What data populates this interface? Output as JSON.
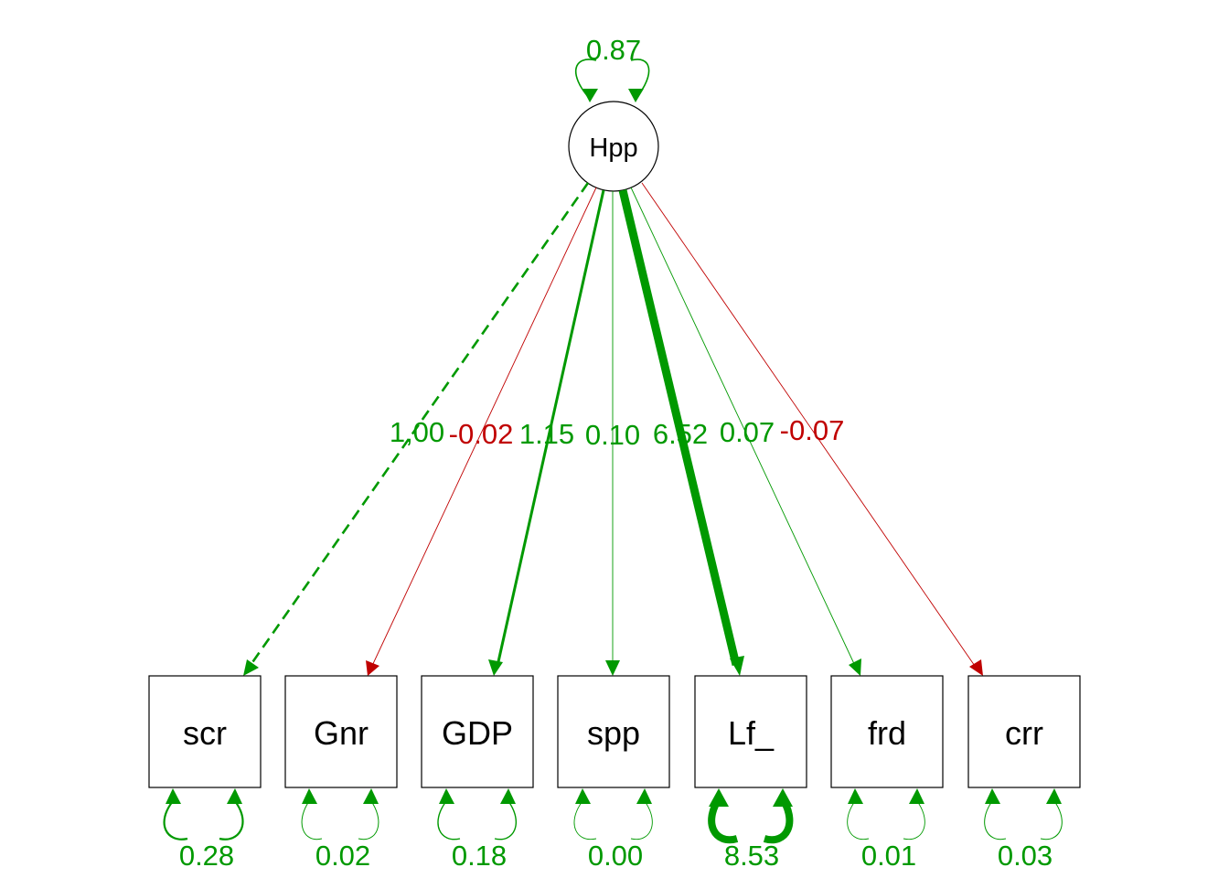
{
  "latent": {
    "label": "Hpp",
    "variance": "0.87"
  },
  "indicators": [
    {
      "label": "scr",
      "loading": "1,00",
      "residual": "0.28"
    },
    {
      "label": "Gnr",
      "loading": "-0.02",
      "residual": "0.02"
    },
    {
      "label": "GDP",
      "loading": "1.15",
      "residual": "0.18"
    },
    {
      "label": "spp",
      "loading": "0.10",
      "residual": "0.00"
    },
    {
      "label": "Lf_",
      "loading": "6.52",
      "residual": "8.53"
    },
    {
      "label": "frd",
      "loading": "0.07",
      "residual": "0.01"
    },
    {
      "label": "crr",
      "loading": "-0.07",
      "residual": "0.03"
    }
  ],
  "colors": {
    "positive": "#009900",
    "negative": "#c00000",
    "node_stroke": "#000000"
  },
  "notes": {
    "first_loading_fixed": "dashed"
  }
}
